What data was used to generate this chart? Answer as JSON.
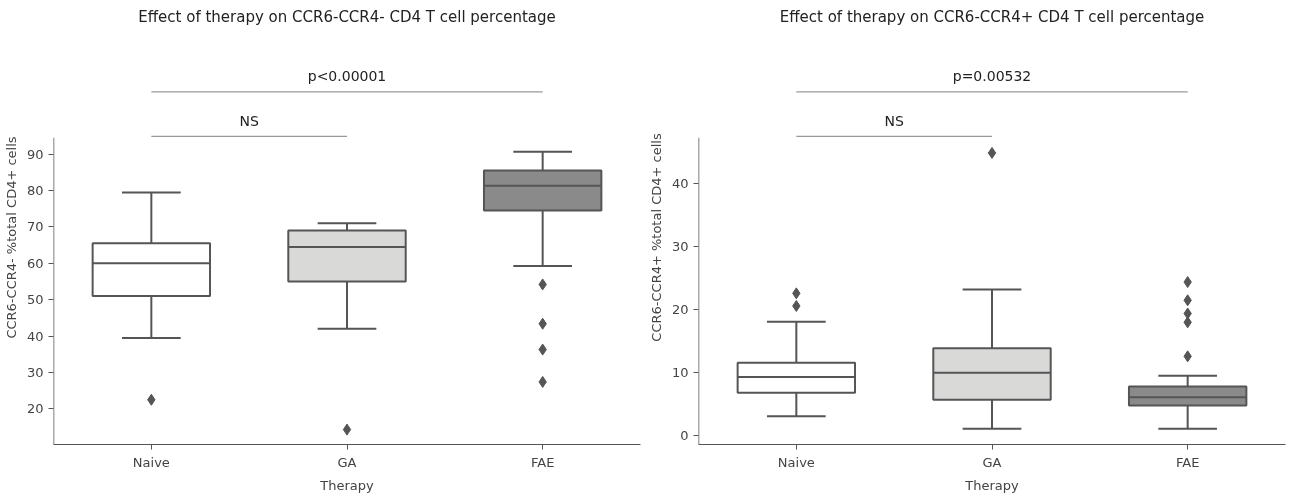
{
  "chart_data": [
    {
      "type": "box",
      "title": "Effect of therapy on CCR6-CCR4- CD4 T cell percentage",
      "xlabel": "Therapy",
      "ylabel": "CCR6-CCR4- %total CD4+ cells",
      "categories": [
        "Naive",
        "GA",
        "FAE"
      ],
      "colors": [
        "#ffffff",
        "#d9dad8",
        "#8a8a8a"
      ],
      "boxes": [
        {
          "low": 39.5,
          "q1": 51,
          "median": 60,
          "q3": 65.5,
          "high": 79.5,
          "outliers": [
            22.5
          ]
        },
        {
          "low": 42,
          "q1": 55,
          "median": 64.5,
          "q3": 69,
          "high": 71,
          "outliers": [
            14.3
          ]
        },
        {
          "low": 59.3,
          "q1": 74.5,
          "median": 81.3,
          "q3": 85.5,
          "high": 90.7,
          "outliers": [
            54.2,
            43.4,
            36.3,
            27.4
          ]
        }
      ],
      "ylim": [
        10.2,
        94.5
      ],
      "yticks": [
        20,
        30,
        40,
        50,
        60,
        70,
        80,
        90
      ],
      "grid": false,
      "marker": "diamond",
      "annotations": [
        "p<0.00001",
        "NS"
      ]
    },
    {
      "type": "box",
      "title": "Effect of therapy on CCR6-CCR4+ CD4 T cell percentage",
      "xlabel": "Therapy",
      "ylabel": "CCR6-CCR4+ %total CD4+ cells",
      "categories": [
        "Naive",
        "GA",
        "FAE"
      ],
      "colors": [
        "#ffffff",
        "#d9dad8",
        "#8a8a8a"
      ],
      "boxes": [
        {
          "low": 3,
          "q1": 6.7,
          "median": 9.2,
          "q3": 11.5,
          "high": 18,
          "outliers": [
            20.5,
            22.5
          ]
        },
        {
          "low": 1,
          "q1": 5.6,
          "median": 9.9,
          "q3": 13.8,
          "high": 23.1,
          "outliers": [
            44.8
          ]
        },
        {
          "low": 1,
          "q1": 4.7,
          "median": 6,
          "q3": 7.7,
          "high": 9.4,
          "outliers": [
            12.5,
            17.9,
            19.3,
            21.4,
            24.3
          ]
        }
      ],
      "ylim": [
        -1.5,
        47.2
      ],
      "yticks": [
        0,
        10,
        20,
        30,
        40
      ],
      "grid": false,
      "marker": "diamond",
      "annotations": [
        "p=0.00532",
        "NS"
      ]
    }
  ]
}
